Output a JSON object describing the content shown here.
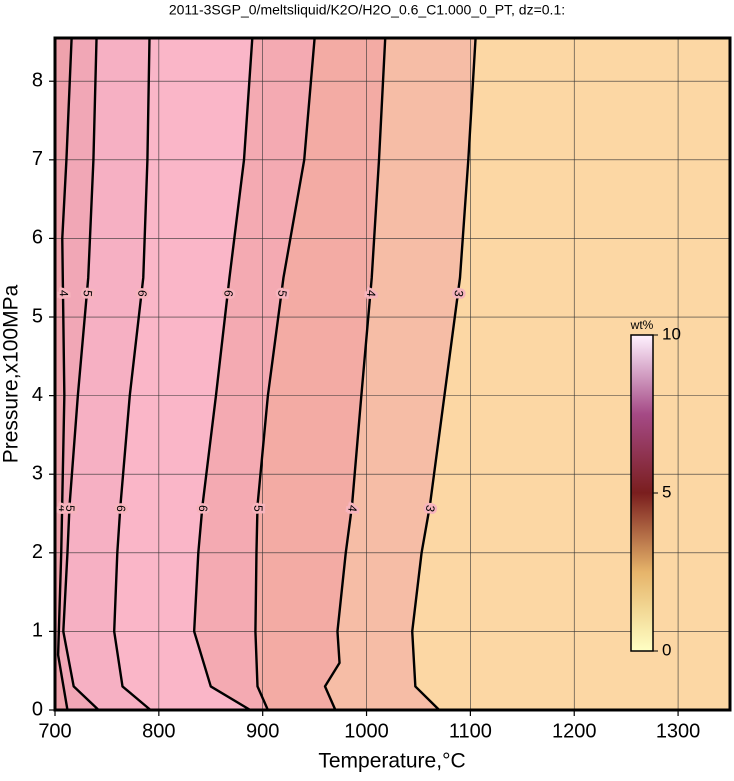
{
  "chart_data": {
    "type": "contour",
    "title": "2011-3SGP_0/meltsliquid/K2O/H2O_0.6_C1.000_0_PT, dz=0.1:",
    "x_label": "Temperature,°C",
    "y_label": "Pressure,x100MPa",
    "xlim": [
      700,
      1350
    ],
    "ylim": [
      0,
      8.55
    ],
    "xticks": [
      700,
      800,
      900,
      1000,
      1100,
      1200,
      1300
    ],
    "yticks": [
      0,
      1,
      2,
      3,
      4,
      5,
      6,
      7,
      8
    ],
    "grid": true,
    "contours": [
      {
        "level": 4,
        "x": [
          712,
          703,
          706,
          709,
          707,
          711,
          716
        ],
        "y": [
          0,
          0.7,
          2,
          4,
          6,
          7,
          8.55
        ]
      },
      {
        "level": 5,
        "x": [
          742,
          718,
          708,
          712,
          714,
          722,
          732,
          737,
          740
        ],
        "y": [
          0,
          0.3,
          1,
          2,
          2.6,
          4,
          5.5,
          7,
          8.55
        ]
      },
      {
        "level": 6,
        "x": [
          792,
          765,
          757,
          760,
          763,
          772,
          785,
          789,
          791
        ],
        "y": [
          0,
          0.3,
          1,
          2,
          2.6,
          4,
          5.5,
          7,
          8.55
        ]
      },
      {
        "level": 6,
        "x": [
          888,
          850,
          834,
          838,
          842,
          855,
          868,
          882,
          890
        ],
        "y": [
          0,
          0.3,
          1,
          2,
          2.6,
          4,
          5.5,
          7,
          8.55
        ]
      },
      {
        "level": 5,
        "x": [
          905,
          895,
          893,
          894,
          895,
          905,
          920,
          940,
          950
        ],
        "y": [
          0,
          0.3,
          1,
          2,
          2.6,
          4,
          5.5,
          7,
          8.55
        ]
      },
      {
        "level": 4,
        "x": [
          970,
          960,
          974,
          972,
          980,
          986,
          995,
          1005,
          1012,
          1018
        ],
        "y": [
          0,
          0.3,
          0.6,
          1,
          2,
          2.6,
          4,
          5.5,
          7,
          8.55
        ]
      },
      {
        "level": 3,
        "x": [
          1070,
          1047,
          1044,
          1053,
          1061,
          1075,
          1090,
          1098,
          1105
        ],
        "y": [
          0,
          0.3,
          1,
          2,
          2.6,
          4,
          5.5,
          7,
          8.55
        ]
      }
    ],
    "colorbar": {
      "label": "wt%",
      "lim": [
        0,
        10
      ],
      "ticks": [
        0,
        5,
        10
      ]
    }
  }
}
